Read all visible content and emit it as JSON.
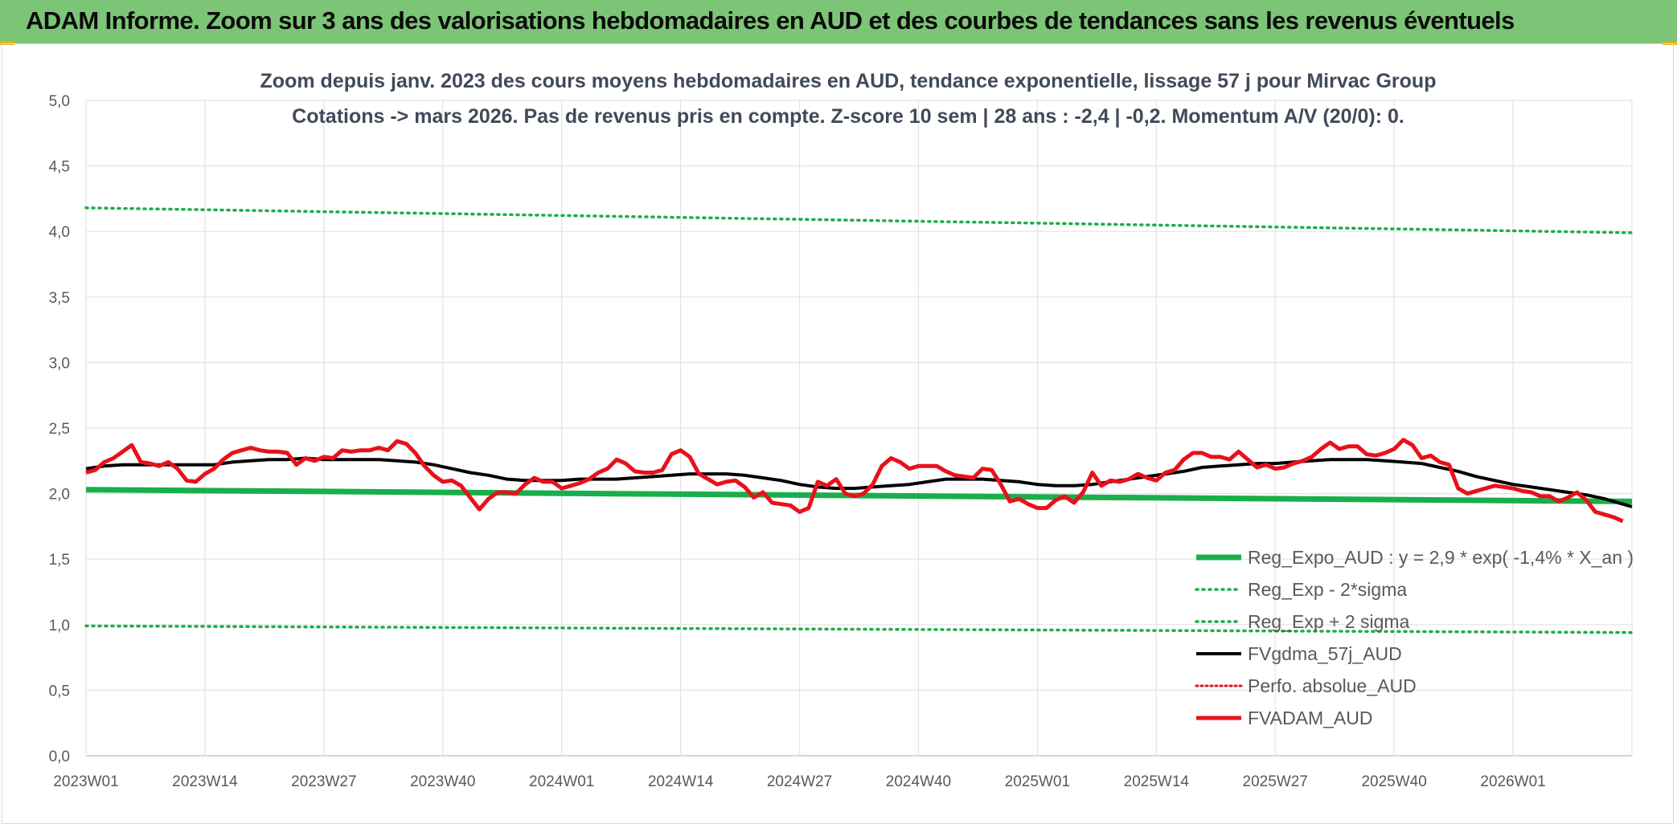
{
  "header": {
    "title": "ADAM Informe. Zoom sur 3 ans des valorisations hebdomadaires en AUD et des courbes de tendances sans les revenus éventuels"
  },
  "colors": {
    "header_bg": "#7cc576",
    "reg_expo": "#1aae4a",
    "sigma": "#1aae4a",
    "fvgdma": "#000000",
    "perfo": "#e8111a",
    "fvadam": "#e8111a",
    "grid": "#e3e3e3"
  },
  "chart_data": {
    "type": "line",
    "title_lines": [
      "Zoom depuis janv. 2023 des cours moyens hebdomadaires en AUD, tendance exponentielle, lissage 57 j pour Mirvac Group",
      "Cotations -> mars 2026. Pas de revenus pris en compte. Z-score 10 sem | 28 ans : -2,4 | -0,2. Momentum A/V (20/0): 0."
    ],
    "x_tick_labels": [
      "2023W01",
      "2023W14",
      "2023W27",
      "2023W40",
      "2024W01",
      "2024W14",
      "2024W27",
      "2024W40",
      "2025W01",
      "2025W14",
      "2025W27",
      "2025W40",
      "2026W01"
    ],
    "x_range_weeks": [
      0,
      169
    ],
    "y_tick_labels": [
      "0,0",
      "0,5",
      "1,0",
      "1,5",
      "2,0",
      "2,5",
      "3,0",
      "3,5",
      "4,0",
      "4,5",
      "5,0"
    ],
    "ylim": [
      0,
      5
    ],
    "grid": true,
    "legend_position": "right",
    "series": [
      {
        "name": "Reg_Expo_AUD : y = 2,9 * exp( -1,4% *  X_an )",
        "style": "solid-thick",
        "points": [
          [
            0,
            2.03
          ],
          [
            169,
            1.94
          ]
        ]
      },
      {
        "name": "Reg_Exp - 2*sigma",
        "style": "dotted",
        "points": [
          [
            0,
            0.99
          ],
          [
            169,
            0.94
          ]
        ]
      },
      {
        "name": "Reg_Exp + 2 sigma",
        "style": "dotted",
        "points": [
          [
            0,
            4.18
          ],
          [
            169,
            3.99
          ]
        ]
      },
      {
        "name": "FVgdma_57j_AUD",
        "style": "solid",
        "points": [
          [
            0,
            2.19
          ],
          [
            2,
            2.21
          ],
          [
            4,
            2.22
          ],
          [
            6,
            2.22
          ],
          [
            8,
            2.22
          ],
          [
            10,
            2.22
          ],
          [
            12,
            2.22
          ],
          [
            14,
            2.22
          ],
          [
            16,
            2.24
          ],
          [
            18,
            2.25
          ],
          [
            20,
            2.26
          ],
          [
            22,
            2.26
          ],
          [
            24,
            2.27
          ],
          [
            26,
            2.26
          ],
          [
            28,
            2.26
          ],
          [
            30,
            2.26
          ],
          [
            32,
            2.26
          ],
          [
            34,
            2.25
          ],
          [
            36,
            2.24
          ],
          [
            38,
            2.22
          ],
          [
            40,
            2.19
          ],
          [
            42,
            2.16
          ],
          [
            44,
            2.14
          ],
          [
            46,
            2.11
          ],
          [
            48,
            2.1
          ],
          [
            50,
            2.1
          ],
          [
            52,
            2.1
          ],
          [
            54,
            2.11
          ],
          [
            56,
            2.11
          ],
          [
            58,
            2.11
          ],
          [
            60,
            2.12
          ],
          [
            62,
            2.13
          ],
          [
            64,
            2.14
          ],
          [
            66,
            2.15
          ],
          [
            68,
            2.15
          ],
          [
            70,
            2.15
          ],
          [
            72,
            2.14
          ],
          [
            74,
            2.12
          ],
          [
            76,
            2.1
          ],
          [
            78,
            2.07
          ],
          [
            80,
            2.05
          ],
          [
            82,
            2.04
          ],
          [
            84,
            2.04
          ],
          [
            86,
            2.05
          ],
          [
            88,
            2.06
          ],
          [
            90,
            2.07
          ],
          [
            92,
            2.09
          ],
          [
            94,
            2.11
          ],
          [
            96,
            2.11
          ],
          [
            98,
            2.11
          ],
          [
            100,
            2.1
          ],
          [
            102,
            2.09
          ],
          [
            104,
            2.07
          ],
          [
            106,
            2.06
          ],
          [
            108,
            2.06
          ],
          [
            110,
            2.07
          ],
          [
            112,
            2.09
          ],
          [
            114,
            2.11
          ],
          [
            116,
            2.13
          ],
          [
            118,
            2.15
          ],
          [
            120,
            2.17
          ],
          [
            122,
            2.2
          ],
          [
            124,
            2.21
          ],
          [
            126,
            2.22
          ],
          [
            128,
            2.23
          ],
          [
            130,
            2.23
          ],
          [
            132,
            2.24
          ],
          [
            134,
            2.25
          ],
          [
            136,
            2.26
          ],
          [
            138,
            2.26
          ],
          [
            140,
            2.26
          ],
          [
            142,
            2.25
          ],
          [
            144,
            2.24
          ],
          [
            146,
            2.23
          ],
          [
            148,
            2.2
          ],
          [
            150,
            2.17
          ],
          [
            152,
            2.13
          ],
          [
            154,
            2.1
          ],
          [
            156,
            2.07
          ],
          [
            158,
            2.05
          ],
          [
            160,
            2.03
          ],
          [
            162,
            2.01
          ],
          [
            164,
            1.99
          ],
          [
            166,
            1.96
          ],
          [
            168,
            1.92
          ],
          [
            169,
            1.9
          ]
        ]
      },
      {
        "name": "Perfo. absolue_AUD",
        "style": "dotted",
        "points": []
      },
      {
        "name": "FVADAM_AUD",
        "style": "solid-thick",
        "points": [
          [
            0,
            2.16
          ],
          [
            1,
            2.18
          ],
          [
            2,
            2.24
          ],
          [
            3,
            2.27
          ],
          [
            4,
            2.32
          ],
          [
            5,
            2.37
          ],
          [
            6,
            2.24
          ],
          [
            7,
            2.23
          ],
          [
            8,
            2.21
          ],
          [
            9,
            2.24
          ],
          [
            10,
            2.19
          ],
          [
            11,
            2.1
          ],
          [
            12,
            2.09
          ],
          [
            13,
            2.15
          ],
          [
            14,
            2.19
          ],
          [
            15,
            2.26
          ],
          [
            16,
            2.31
          ],
          [
            17,
            2.33
          ],
          [
            18,
            2.35
          ],
          [
            19,
            2.33
          ],
          [
            20,
            2.32
          ],
          [
            21,
            2.32
          ],
          [
            22,
            2.31
          ],
          [
            23,
            2.22
          ],
          [
            24,
            2.27
          ],
          [
            25,
            2.25
          ],
          [
            26,
            2.28
          ],
          [
            27,
            2.27
          ],
          [
            28,
            2.33
          ],
          [
            29,
            2.32
          ],
          [
            30,
            2.33
          ],
          [
            31,
            2.33
          ],
          [
            32,
            2.35
          ],
          [
            33,
            2.33
          ],
          [
            34,
            2.4
          ],
          [
            35,
            2.38
          ],
          [
            36,
            2.31
          ],
          [
            37,
            2.21
          ],
          [
            38,
            2.14
          ],
          [
            39,
            2.09
          ],
          [
            40,
            2.1
          ],
          [
            41,
            2.06
          ],
          [
            42,
            1.97
          ],
          [
            43,
            1.88
          ],
          [
            44,
            1.96
          ],
          [
            45,
            2.01
          ],
          [
            46,
            2.01
          ],
          [
            47,
            2.0
          ],
          [
            48,
            2.07
          ],
          [
            49,
            2.12
          ],
          [
            50,
            2.09
          ],
          [
            51,
            2.09
          ],
          [
            52,
            2.04
          ],
          [
            53,
            2.06
          ],
          [
            54,
            2.08
          ],
          [
            55,
            2.11
          ],
          [
            56,
            2.16
          ],
          [
            57,
            2.19
          ],
          [
            58,
            2.26
          ],
          [
            59,
            2.23
          ],
          [
            60,
            2.17
          ],
          [
            61,
            2.16
          ],
          [
            62,
            2.16
          ],
          [
            63,
            2.18
          ],
          [
            64,
            2.3
          ],
          [
            65,
            2.33
          ],
          [
            66,
            2.28
          ],
          [
            67,
            2.15
          ],
          [
            68,
            2.11
          ],
          [
            69,
            2.07
          ],
          [
            70,
            2.09
          ],
          [
            71,
            2.1
          ],
          [
            72,
            2.05
          ],
          [
            73,
            1.97
          ],
          [
            74,
            2.01
          ],
          [
            75,
            1.93
          ],
          [
            76,
            1.92
          ],
          [
            77,
            1.91
          ],
          [
            78,
            1.86
          ],
          [
            79,
            1.89
          ],
          [
            80,
            2.09
          ],
          [
            81,
            2.06
          ],
          [
            82,
            2.11
          ],
          [
            83,
            2.0
          ],
          [
            84,
            1.98
          ],
          [
            85,
            2.0
          ],
          [
            86,
            2.07
          ],
          [
            87,
            2.21
          ],
          [
            88,
            2.27
          ],
          [
            89,
            2.24
          ],
          [
            90,
            2.19
          ],
          [
            91,
            2.21
          ],
          [
            92,
            2.21
          ],
          [
            93,
            2.21
          ],
          [
            94,
            2.17
          ],
          [
            95,
            2.14
          ],
          [
            96,
            2.13
          ],
          [
            97,
            2.12
          ],
          [
            98,
            2.19
          ],
          [
            99,
            2.18
          ],
          [
            100,
            2.07
          ],
          [
            101,
            1.94
          ],
          [
            102,
            1.96
          ],
          [
            103,
            1.92
          ],
          [
            104,
            1.89
          ],
          [
            105,
            1.89
          ],
          [
            106,
            1.95
          ],
          [
            107,
            1.98
          ],
          [
            108,
            1.93
          ],
          [
            109,
            2.01
          ],
          [
            110,
            2.16
          ],
          [
            111,
            2.06
          ],
          [
            112,
            2.1
          ],
          [
            113,
            2.09
          ],
          [
            114,
            2.11
          ],
          [
            115,
            2.15
          ],
          [
            116,
            2.12
          ],
          [
            117,
            2.1
          ],
          [
            118,
            2.16
          ],
          [
            119,
            2.18
          ],
          [
            120,
            2.26
          ],
          [
            121,
            2.31
          ],
          [
            122,
            2.31
          ],
          [
            123,
            2.28
          ],
          [
            124,
            2.28
          ],
          [
            125,
            2.26
          ],
          [
            126,
            2.32
          ],
          [
            127,
            2.26
          ],
          [
            128,
            2.2
          ],
          [
            129,
            2.22
          ],
          [
            130,
            2.19
          ],
          [
            131,
            2.2
          ],
          [
            132,
            2.23
          ],
          [
            133,
            2.25
          ],
          [
            134,
            2.28
          ],
          [
            135,
            2.34
          ],
          [
            136,
            2.39
          ],
          [
            137,
            2.34
          ],
          [
            138,
            2.36
          ],
          [
            139,
            2.36
          ],
          [
            140,
            2.3
          ],
          [
            141,
            2.29
          ],
          [
            142,
            2.31
          ],
          [
            143,
            2.34
          ],
          [
            144,
            2.41
          ],
          [
            145,
            2.37
          ],
          [
            146,
            2.27
          ],
          [
            147,
            2.29
          ],
          [
            148,
            2.24
          ],
          [
            149,
            2.22
          ],
          [
            150,
            2.04
          ],
          [
            151,
            2.0
          ],
          [
            152,
            2.02
          ],
          [
            153,
            2.04
          ],
          [
            154,
            2.06
          ],
          [
            155,
            2.05
          ],
          [
            156,
            2.04
          ],
          [
            157,
            2.02
          ],
          [
            158,
            2.01
          ],
          [
            159,
            1.98
          ],
          [
            160,
            1.98
          ],
          [
            161,
            1.94
          ],
          [
            162,
            1.97
          ],
          [
            163,
            2.01
          ],
          [
            164,
            1.95
          ],
          [
            165,
            1.86
          ],
          [
            166,
            1.84
          ],
          [
            167,
            1.82
          ],
          [
            168,
            1.79
          ]
        ]
      }
    ]
  }
}
